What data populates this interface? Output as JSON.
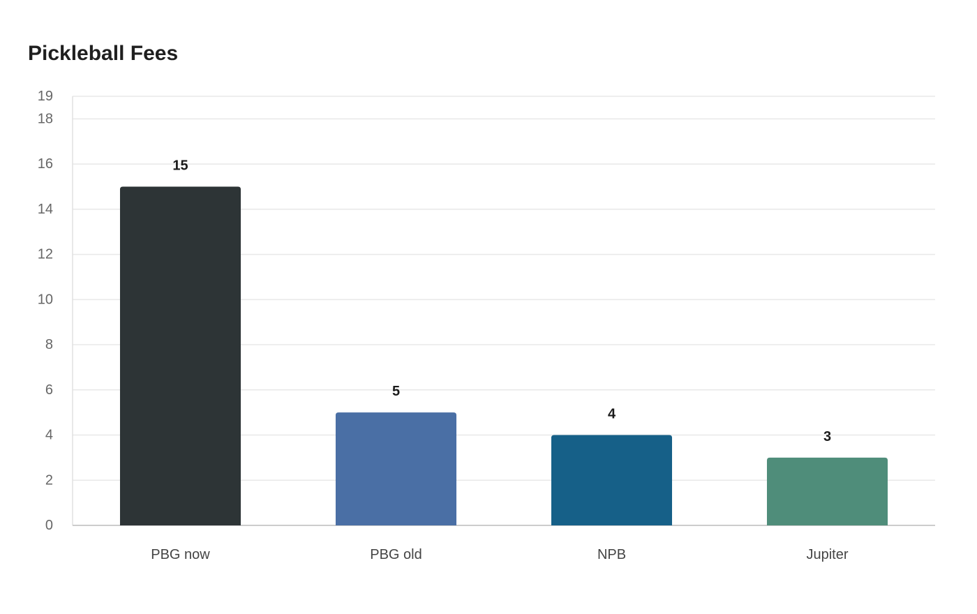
{
  "chart_data": {
    "type": "bar",
    "title": "Pickleball Fees",
    "xlabel": "",
    "ylabel": "",
    "categories": [
      "PBG now",
      "PBG old",
      "NPB",
      "Jupiter"
    ],
    "values": [
      15,
      5,
      4,
      3
    ],
    "data_labels": [
      "15",
      "5",
      "4",
      "3"
    ],
    "colors": [
      "#2d3436",
      "#4a6fa5",
      "#166088",
      "#4f8d7a"
    ],
    "ylim": [
      0,
      19
    ],
    "y_ticks": [
      0,
      2,
      4,
      6,
      8,
      10,
      12,
      14,
      16,
      18,
      19
    ],
    "y_tick_labels": [
      "0",
      "2",
      "4",
      "6",
      "8",
      "10",
      "12",
      "14",
      "16",
      "18",
      "19"
    ],
    "grid": true,
    "legend": "none"
  }
}
